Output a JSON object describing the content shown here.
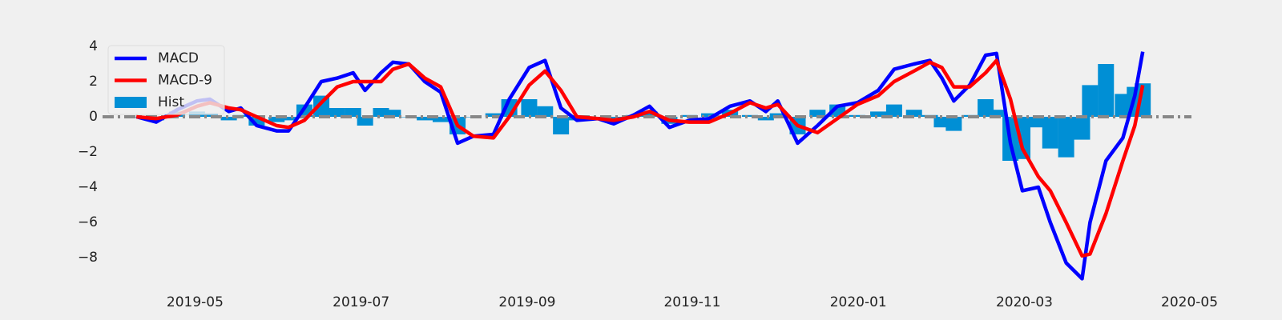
{
  "chart_data": {
    "type": "line",
    "legend": "upper left",
    "grid": false,
    "xlim": [
      2019.24,
      2020.335
    ],
    "ylim": [
      -9.8,
      4.7
    ],
    "xticks": [
      {
        "value": 2019.333,
        "label": "2019-05"
      },
      {
        "value": 2019.5,
        "label": "2019-07"
      },
      {
        "value": 2019.667,
        "label": "2019-09"
      },
      {
        "value": 2019.833,
        "label": "2019-11"
      },
      {
        "value": 2020.0,
        "label": "2020-01"
      },
      {
        "value": 2020.167,
        "label": "2020-03"
      },
      {
        "value": 2020.333,
        "label": "2020-05"
      }
    ],
    "yticks": [
      4,
      2,
      0,
      {
        "value": -2,
        "label": "−2"
      },
      {
        "value": -4,
        "label": "−4"
      },
      {
        "value": -6,
        "label": "−6"
      },
      {
        "value": -8,
        "label": "−8"
      }
    ],
    "x": [
      2019.274,
      2019.294,
      2019.315,
      2019.335,
      2019.348,
      2019.367,
      2019.379,
      2019.395,
      2019.415,
      2019.427,
      2019.443,
      2019.46,
      2019.476,
      2019.492,
      2019.504,
      2019.52,
      2019.532,
      2019.548,
      2019.564,
      2019.58,
      2019.597,
      2019.613,
      2019.633,
      2019.649,
      2019.669,
      2019.685,
      2019.701,
      2019.717,
      2019.738,
      2019.754,
      2019.774,
      2019.79,
      2019.81,
      2019.83,
      2019.85,
      2019.871,
      2019.891,
      2019.907,
      2019.919,
      2019.939,
      2019.959,
      2019.979,
      2019.999,
      2020.02,
      2020.036,
      2020.056,
      2020.072,
      2020.084,
      2020.096,
      2020.112,
      2020.128,
      2020.139,
      2020.153,
      2020.165,
      2020.181,
      2020.193,
      2020.209,
      2020.225,
      2020.233,
      2020.249,
      2020.266,
      2020.278,
      2020.286
    ],
    "series": [
      {
        "name": "MACD",
        "color": "#0000ff",
        "kind": "line",
        "values": [
          0.0,
          -0.3,
          0.4,
          0.9,
          1.0,
          0.3,
          0.5,
          -0.5,
          -0.8,
          -0.8,
          0.5,
          2.0,
          2.2,
          2.5,
          1.5,
          2.5,
          3.1,
          3.0,
          2.0,
          1.4,
          -1.5,
          -1.1,
          -1.0,
          1.0,
          2.8,
          3.2,
          0.5,
          -0.2,
          -0.1,
          -0.4,
          0.1,
          0.6,
          -0.6,
          -0.2,
          -0.1,
          0.6,
          0.9,
          0.3,
          0.9,
          -1.5,
          -0.5,
          0.6,
          0.8,
          1.5,
          2.7,
          3.0,
          3.2,
          2.2,
          0.9,
          1.8,
          3.5,
          3.6,
          -1.5,
          -4.2,
          -4.0,
          -6.0,
          -8.3,
          -9.2,
          -6.0,
          -2.5,
          -1.2,
          1.2,
          3.7
        ]
      },
      {
        "name": "MACD-9",
        "color": "#ff0000",
        "kind": "line",
        "values": [
          0.0,
          -0.1,
          0.1,
          0.6,
          0.8,
          0.5,
          0.4,
          0.0,
          -0.5,
          -0.6,
          -0.2,
          0.8,
          1.7,
          2.0,
          2.0,
          2.0,
          2.7,
          3.0,
          2.2,
          1.7,
          -0.5,
          -1.1,
          -1.2,
          0.0,
          1.8,
          2.6,
          1.5,
          0.0,
          -0.1,
          -0.2,
          0.0,
          0.3,
          -0.2,
          -0.3,
          -0.3,
          0.2,
          0.8,
          0.5,
          0.7,
          -0.5,
          -0.9,
          -0.1,
          0.7,
          1.2,
          2.0,
          2.6,
          3.1,
          2.8,
          1.7,
          1.7,
          2.5,
          3.2,
          1.0,
          -1.8,
          -3.4,
          -4.2,
          -6.0,
          -7.9,
          -7.8,
          -5.5,
          -2.5,
          -0.5,
          1.8
        ]
      },
      {
        "name": "Hist",
        "color": "#008fd5",
        "kind": "bar",
        "values": [
          0,
          -0.2,
          0.3,
          0.3,
          0.2,
          -0.2,
          0.1,
          -0.5,
          -0.3,
          -0.2,
          0.7,
          1.2,
          0.5,
          0.5,
          -0.5,
          0.5,
          0.4,
          0,
          -0.2,
          -0.3,
          -1.0,
          0,
          0.2,
          1.0,
          1.0,
          0.6,
          -1.0,
          -0.2,
          0,
          -0.2,
          0.1,
          0.3,
          -0.4,
          0.1,
          0.2,
          0.4,
          0.1,
          -0.2,
          0.2,
          -1.0,
          0.4,
          0.7,
          0.1,
          0.3,
          0.7,
          0.4,
          0.1,
          -0.6,
          -0.8,
          0.1,
          1.0,
          0.4,
          -2.5,
          -2.4,
          -0.6,
          -1.8,
          -2.3,
          -1.3,
          1.8,
          3.0,
          1.3,
          1.7,
          1.9
        ]
      }
    ]
  }
}
